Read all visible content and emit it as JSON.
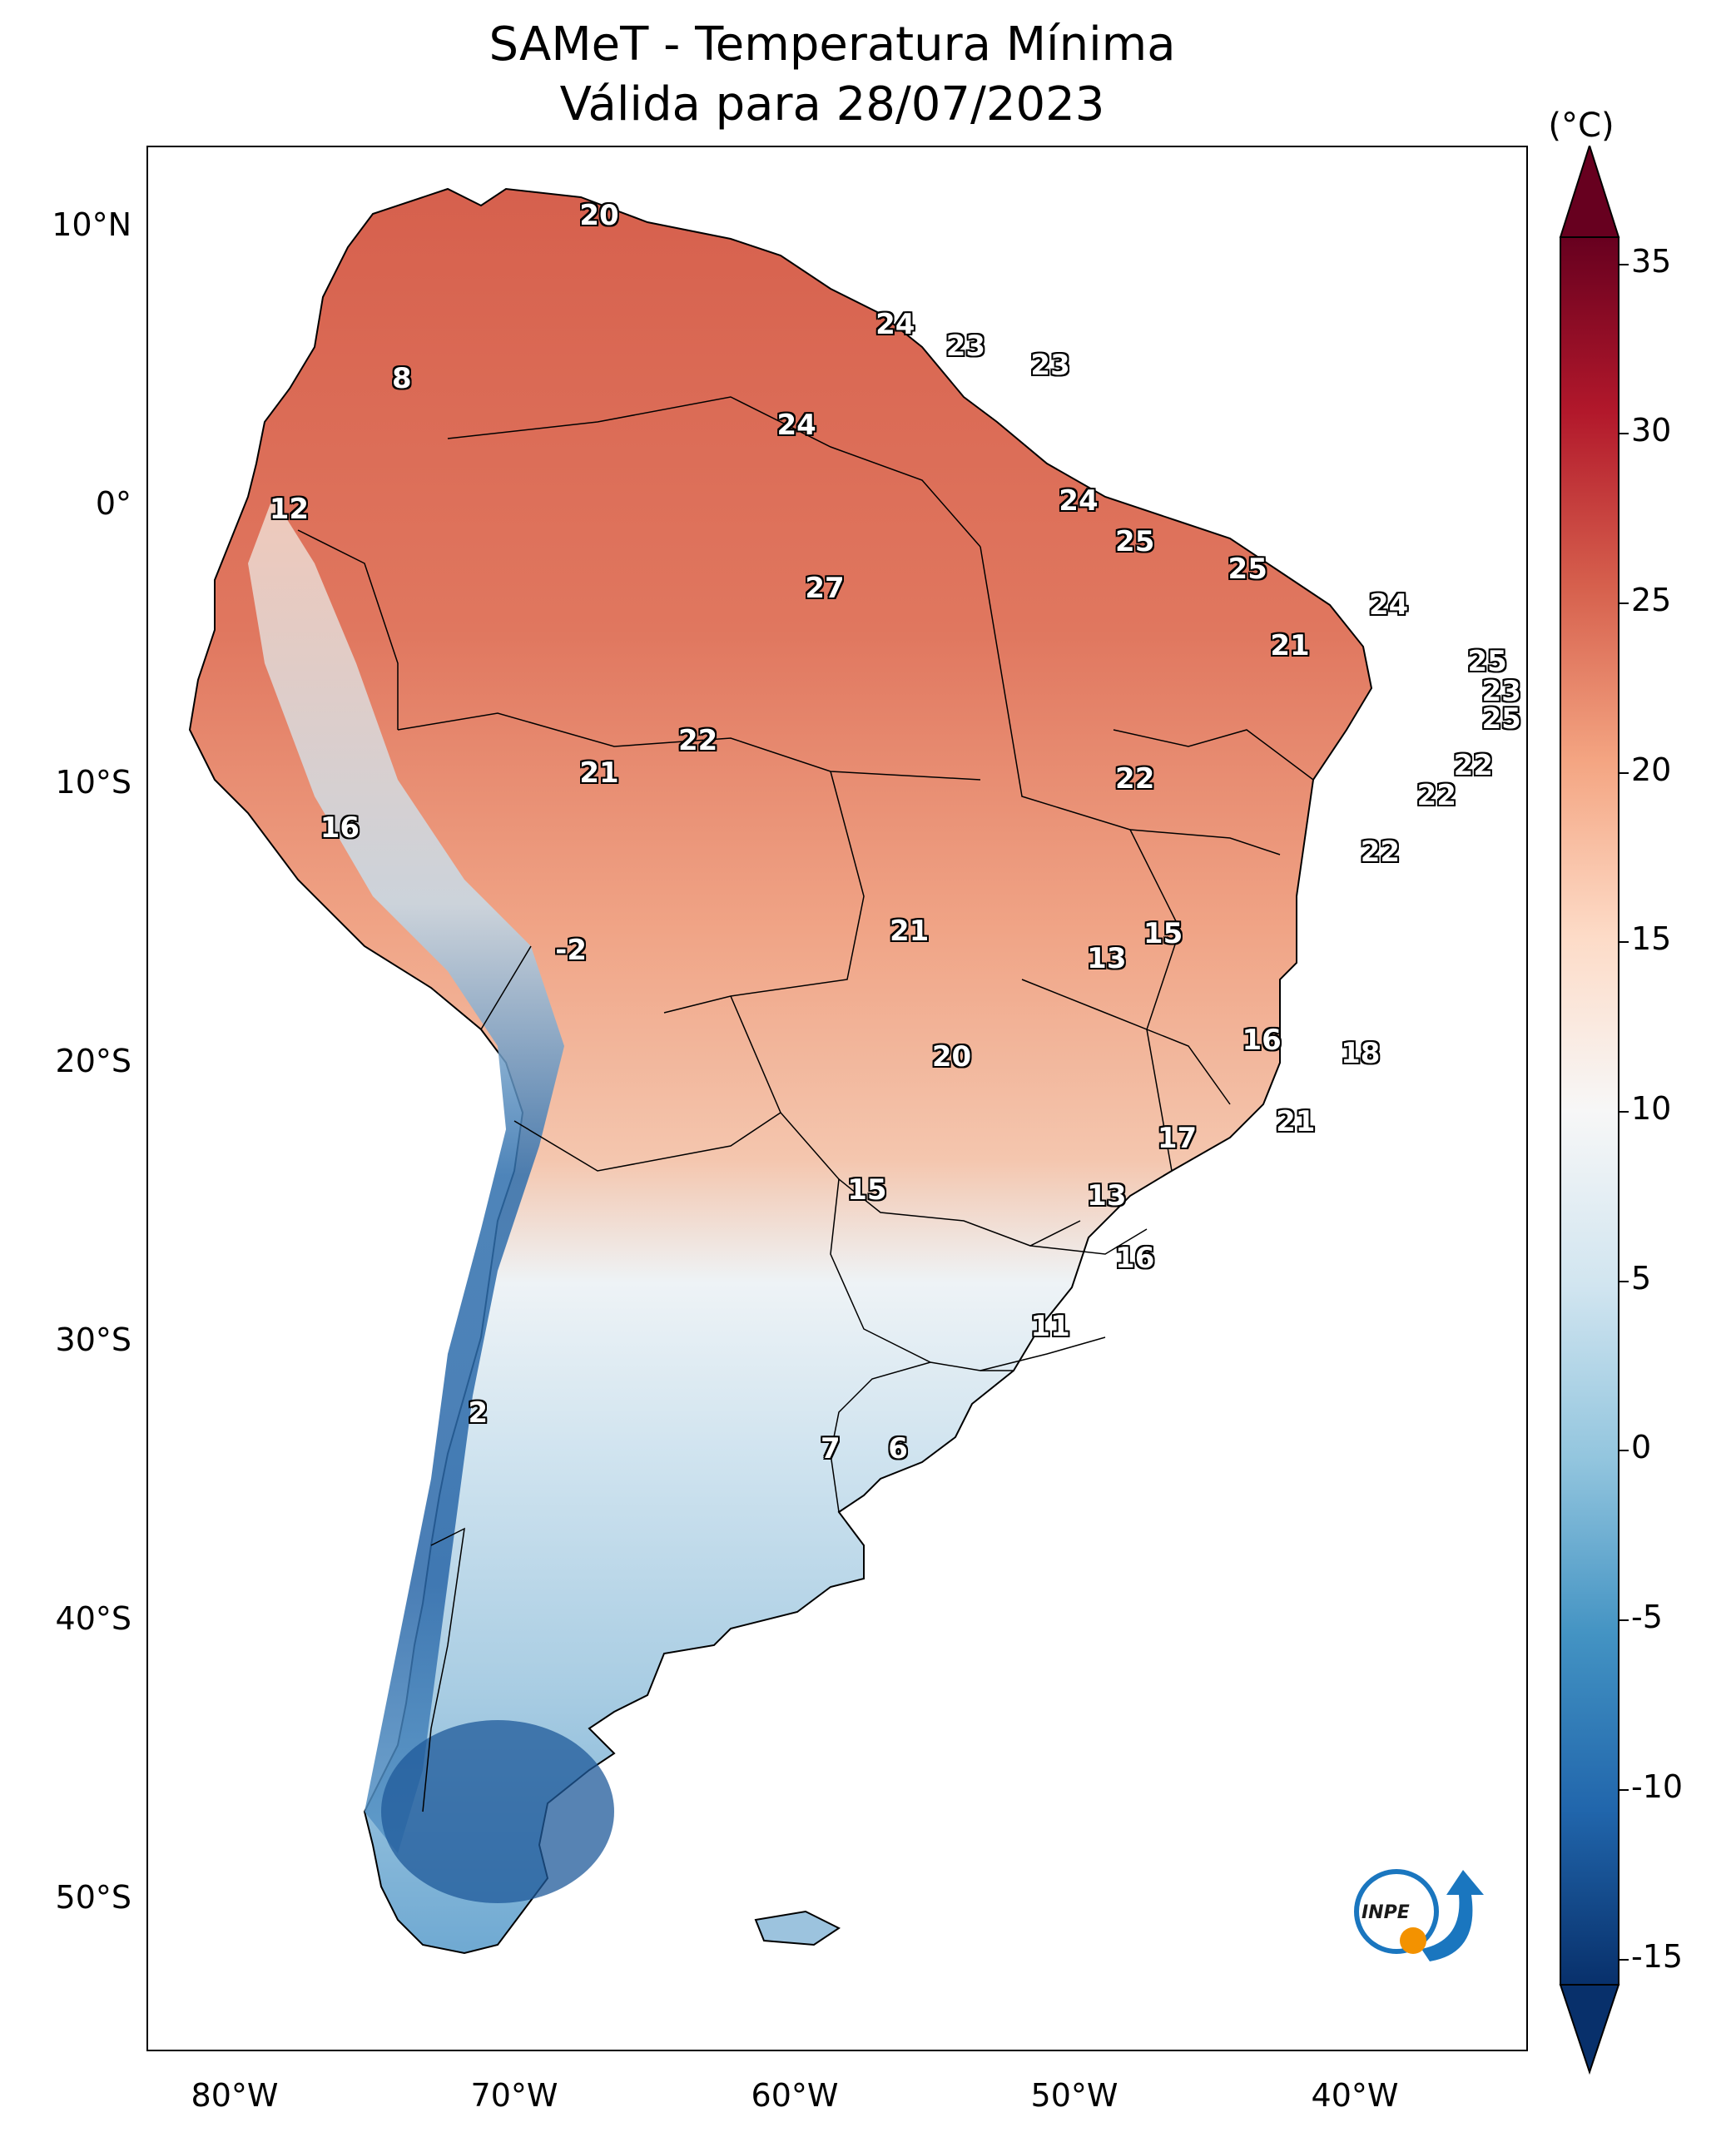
{
  "title": {
    "line1": "SAMeT - Temperatura Mínima",
    "line2": "Válida para 28/07/2023"
  },
  "axes": {
    "lat_labels": [
      "10°N",
      "0°",
      "10°S",
      "20°S",
      "30°S",
      "40°S",
      "50°S"
    ],
    "lon_labels": [
      "80°W",
      "70°W",
      "60°W",
      "50°W",
      "40°W"
    ]
  },
  "colorbar": {
    "unit": "(°C)",
    "labels": [
      "35",
      "30",
      "25",
      "20",
      "15",
      "10",
      "5",
      "0",
      "-5",
      "-10",
      "-15"
    ],
    "min": -15,
    "max": 35,
    "colors": [
      "#08306b",
      "#2166ac",
      "#4393c3",
      "#92c5de",
      "#d1e5f0",
      "#f7f7f7",
      "#fddbc7",
      "#f4a582",
      "#d6604d",
      "#b2182b",
      "#67001f"
    ]
  },
  "chart_data": {
    "type": "map",
    "extent": {
      "lon": [
        -83,
        -34
      ],
      "lat": [
        -57,
        13
      ]
    },
    "point_labels": [
      {
        "text": "20",
        "lon": -67,
        "lat": 10.5
      },
      {
        "text": "24",
        "lon": -56.5,
        "lat": 6.5
      },
      {
        "text": "23",
        "lon": -54,
        "lat": 5.7
      },
      {
        "text": "23",
        "lon": -51,
        "lat": 5
      },
      {
        "text": "8",
        "lon": -74,
        "lat": 4.5
      },
      {
        "text": "24",
        "lon": -60,
        "lat": 2.8
      },
      {
        "text": "12",
        "lon": -78,
        "lat": -0.3
      },
      {
        "text": "24",
        "lon": -50,
        "lat": 0
      },
      {
        "text": "25",
        "lon": -48,
        "lat": -1.5
      },
      {
        "text": "25",
        "lon": -44,
        "lat": -2.5
      },
      {
        "text": "24",
        "lon": -39,
        "lat": -3.8
      },
      {
        "text": "27",
        "lon": -59,
        "lat": -3.2
      },
      {
        "text": "21",
        "lon": -42.5,
        "lat": -5.3
      },
      {
        "text": "25",
        "lon": -35.5,
        "lat": -5.9
      },
      {
        "text": "23",
        "lon": -35,
        "lat": -7
      },
      {
        "text": "25",
        "lon": -35,
        "lat": -8
      },
      {
        "text": "22",
        "lon": -63.5,
        "lat": -8.8
      },
      {
        "text": "22",
        "lon": -36,
        "lat": -9.7
      },
      {
        "text": "21",
        "lon": -67,
        "lat": -10
      },
      {
        "text": "22",
        "lon": -48,
        "lat": -10.2
      },
      {
        "text": "22",
        "lon": -37.3,
        "lat": -10.8
      },
      {
        "text": "16",
        "lon": -76.2,
        "lat": -12
      },
      {
        "text": "22",
        "lon": -39.3,
        "lat": -12.9
      },
      {
        "text": "21",
        "lon": -56,
        "lat": -15.8
      },
      {
        "text": "15",
        "lon": -47,
        "lat": -15.9
      },
      {
        "text": "13",
        "lon": -49,
        "lat": -16.8
      },
      {
        "text": "-2",
        "lon": -68,
        "lat": -16.5
      },
      {
        "text": "16",
        "lon": -43.5,
        "lat": -19.8
      },
      {
        "text": "18",
        "lon": -40,
        "lat": -20.3
      },
      {
        "text": "20",
        "lon": -54.5,
        "lat": -20.4
      },
      {
        "text": "21",
        "lon": -42.3,
        "lat": -22.8
      },
      {
        "text": "17",
        "lon": -46.5,
        "lat": -23.4
      },
      {
        "text": "15",
        "lon": -57.5,
        "lat": -25.3
      },
      {
        "text": "13",
        "lon": -49,
        "lat": -25.5
      },
      {
        "text": "16",
        "lon": -48,
        "lat": -27.8
      },
      {
        "text": "11",
        "lon": -51,
        "lat": -30.3
      },
      {
        "text": "2",
        "lon": -71.3,
        "lat": -33.5
      },
      {
        "text": "7",
        "lon": -58.8,
        "lat": -34.8
      },
      {
        "text": "6",
        "lon": -56.4,
        "lat": -34.8
      }
    ]
  },
  "logo": {
    "text": "INPE"
  }
}
